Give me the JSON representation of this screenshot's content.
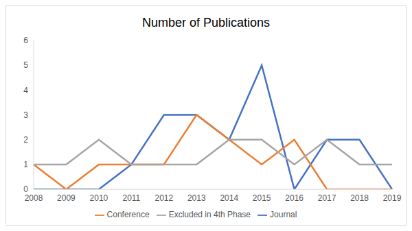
{
  "chart_data": {
    "type": "line",
    "title": "Number of Publications",
    "categories": [
      "2008",
      "2009",
      "2010",
      "2011",
      "2012",
      "2013",
      "2014",
      "2015",
      "2016",
      "2017",
      "2018",
      "2019"
    ],
    "series": [
      {
        "name": "Journal",
        "color": "#4472c4",
        "values": [
          0,
          0,
          0,
          1,
          3,
          3,
          2,
          5,
          0,
          2,
          2,
          0
        ]
      },
      {
        "name": "Conference",
        "color": "#ed7d31",
        "values": [
          1,
          0,
          1,
          1,
          1,
          3,
          2,
          1,
          2,
          0,
          0,
          0
        ]
      },
      {
        "name": "Excluded in 4th Phase",
        "color": "#a5a5a5",
        "values": [
          1,
          1,
          2,
          1,
          1,
          1,
          2,
          2,
          1,
          2,
          1,
          1
        ]
      }
    ],
    "ylim": [
      0,
      6
    ],
    "yticks": [
      0,
      1,
      2,
      3,
      4,
      5,
      6
    ],
    "grid": false,
    "legend": "bottom"
  }
}
